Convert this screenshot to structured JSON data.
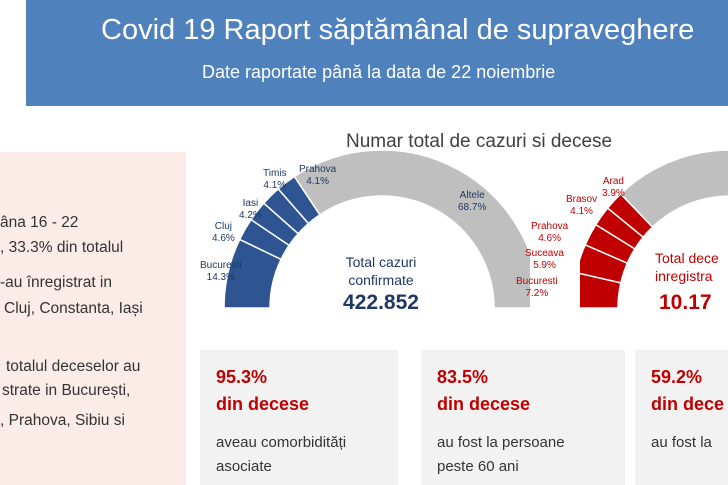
{
  "header": {
    "title": "Covid 19 Raport săptămânal de supraveghere",
    "subtitle": "Date raportate până la data de 22 noiembrie"
  },
  "left_panel": {
    "lines": [
      "âna 16 - 22",
      ", 33.3% din totalul",
      "-au înregistrat in",
      "Cluj, Constanta, Iași",
      "totalul deceselor au",
      "strate in București,",
      ", Prahova, Sibiu si"
    ]
  },
  "chart": {
    "title": "Numar total de cazuri si decese",
    "cases": {
      "center_label_1": "Total cazuri",
      "center_label_2": "confirmate",
      "total": "422.852",
      "color": "#2e5591",
      "segments": [
        {
          "name": "Bucuresti",
          "pct": "14.3%",
          "value": 14.3
        },
        {
          "name": "Cluj",
          "pct": "4.6%",
          "value": 4.6
        },
        {
          "name": "Iasi",
          "pct": "4.2%",
          "value": 4.2
        },
        {
          "name": "Timis",
          "pct": "4.1%",
          "value": 4.1
        },
        {
          "name": "Prahova",
          "pct": "4.1%",
          "value": 4.1
        },
        {
          "name": "Altele",
          "pct": "68.7%",
          "value": 68.7
        }
      ]
    },
    "deaths": {
      "center_label_1": "Total dece",
      "center_label_2": "inregistra",
      "total": "10.17",
      "color": "#c00000",
      "segments": [
        {
          "name": "Bucuresti",
          "pct": "7.2%",
          "value": 7.2
        },
        {
          "name": "Suceava",
          "pct": "5.9%",
          "value": 5.9
        },
        {
          "name": "Prahova",
          "pct": "4.6%",
          "value": 4.6
        },
        {
          "name": "Brasov",
          "pct": "4.1%",
          "value": 4.1
        },
        {
          "name": "Arad",
          "pct": "3.9%",
          "value": 3.9
        }
      ]
    }
  },
  "cards": [
    {
      "pct": "95.3%",
      "head": "din decese",
      "desc1": "aveau comorbidități",
      "desc2": "asociate"
    },
    {
      "pct": "83.5%",
      "head": "din decese",
      "desc1": "au fost la persoane",
      "desc2": "peste 60 ani"
    },
    {
      "pct": "59.2%",
      "head": "din dece",
      "desc1": "au fost la",
      "desc2": ""
    }
  ],
  "colors": {
    "banner": "#4f81bd",
    "accent_red": "#c00000",
    "accent_blue": "#2e5591",
    "gauge_grey": "#bfbfbf",
    "panel_pink": "#fbece8",
    "card_grey": "#f2f2f2"
  }
}
